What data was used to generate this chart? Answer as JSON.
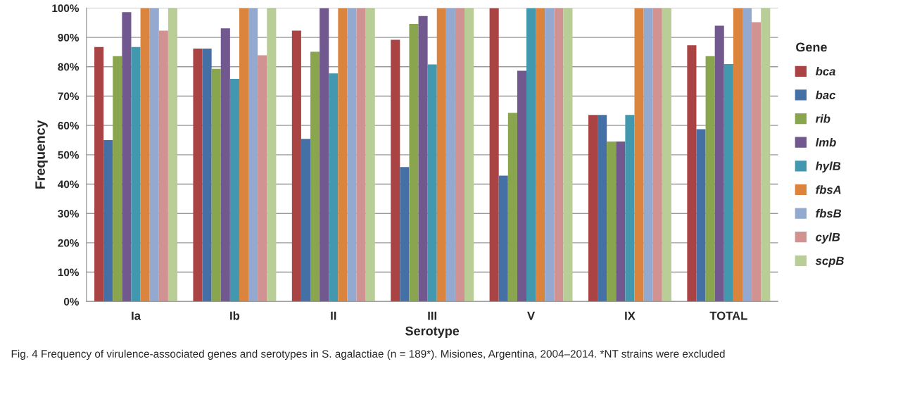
{
  "chart_data": {
    "type": "bar",
    "xlabel": "Serotype",
    "ylabel": "Frequency",
    "legend_title": "Gene",
    "categories": [
      "Ia",
      "Ib",
      "II",
      "III",
      "V",
      "IX",
      "TOTAL"
    ],
    "series": [
      {
        "name": "bca",
        "color": "#aa4344",
        "values": [
          86.7,
          86.2,
          92.3,
          89.2,
          100,
          63.6,
          87.3
        ]
      },
      {
        "name": "bac",
        "color": "#4470a6",
        "values": [
          55,
          86.2,
          55.4,
          45.8,
          42.9,
          63.6,
          58.7
        ]
      },
      {
        "name": "rib",
        "color": "#89a54e",
        "values": [
          83.6,
          79.3,
          85.1,
          94.6,
          64.3,
          54.5,
          83.6
        ]
      },
      {
        "name": "lmb",
        "color": "#71588f",
        "values": [
          98.6,
          93.1,
          100,
          97.3,
          78.6,
          54.5,
          94.0
        ]
      },
      {
        "name": "hylB",
        "color": "#4198af",
        "values": [
          86.7,
          75.9,
          77.7,
          80.8,
          100,
          63.6,
          80.9
        ]
      },
      {
        "name": "fbsA",
        "color": "#db843d",
        "values": [
          100,
          100,
          100,
          100,
          100,
          100,
          100
        ]
      },
      {
        "name": "fbsB",
        "color": "#93a9cf",
        "values": [
          100,
          100,
          100,
          100,
          100,
          100,
          100
        ]
      },
      {
        "name": "cylB",
        "color": "#d19392",
        "values": [
          92.3,
          83.9,
          100,
          100,
          100,
          100,
          95.2
        ]
      },
      {
        "name": "scpB",
        "color": "#b9cd96",
        "values": [
          100,
          100,
          100,
          100,
          100,
          100,
          100
        ]
      }
    ],
    "ylim": [
      0,
      100
    ],
    "yticks": [
      {
        "value": 0,
        "label": "0%"
      },
      {
        "value": 10,
        "label": "10%"
      },
      {
        "value": 20,
        "label": "20%"
      },
      {
        "value": 30,
        "label": "30%"
      },
      {
        "value": 40,
        "label": "40%"
      },
      {
        "value": 50,
        "label": "50%"
      },
      {
        "value": 60,
        "label": "60%"
      },
      {
        "value": 70,
        "label": "70%"
      },
      {
        "value": 80,
        "label": "80%"
      },
      {
        "value": 90,
        "label": "90%"
      },
      {
        "value": 100,
        "label": "100%"
      }
    ],
    "grid": "y",
    "legend": "right",
    "annotations": [
      "Fig. 4 Frequency of virulence-associated genes and serotypes in S. agalactiae (n = 189*). Misiones, Argentina, 2004–2014. *NT strains were excluded"
    ]
  }
}
